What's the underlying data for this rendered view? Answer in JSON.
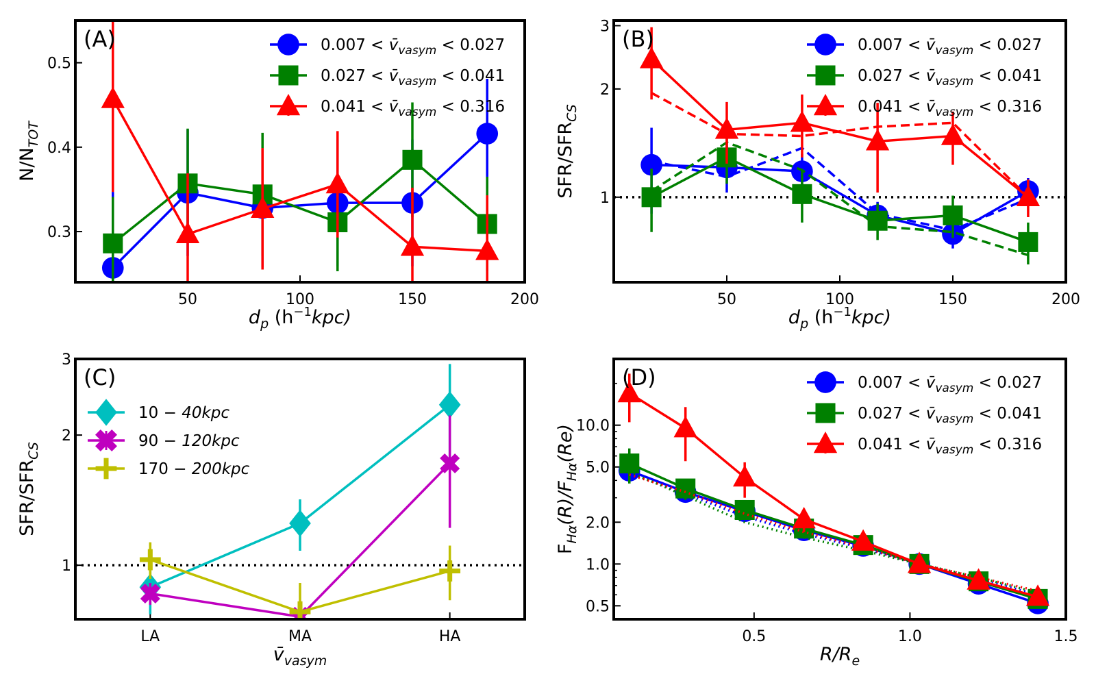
{
  "colors": {
    "blue": "#0000ff",
    "green": "#008000",
    "red": "#ff0000",
    "cyan": "#00bfbf",
    "magenta": "#bf00bf",
    "olive": "#bfbf00",
    "black": "#000000"
  },
  "legend_velocity": [
    "0.007 < v̄ vasym < 0.027",
    "0.027 < v̄ vasym < 0.041",
    "0.041 < v̄ vasym < 0.316"
  ],
  "chart_data": [
    {
      "id": "A",
      "type": "line",
      "panel_label": "(A)",
      "xlabel": "d p (h −1 kpc)",
      "xlabel_parts": {
        "main": "d",
        "sub": "p",
        "rest": " (h",
        "sup": "−1",
        "end": "kpc)"
      },
      "ylabel": "N/N TOT",
      "ylabel_parts": {
        "main": "N/N",
        "sub": "TOT"
      },
      "xlim": [
        0,
        200
      ],
      "ylim": [
        0.24,
        0.55
      ],
      "yscale": "linear",
      "xticks": [
        50,
        100,
        150,
        200
      ],
      "xticklabels": [
        "50",
        "100",
        "150",
        "200"
      ],
      "yticks": [
        0.3,
        0.4,
        0.5
      ],
      "yticklabels": [
        "0.3",
        "0.4",
        "0.5"
      ],
      "legend": "top-right",
      "x": [
        16.7,
        50,
        83.3,
        116.7,
        150,
        183.3
      ],
      "series": [
        {
          "name": "0.007 < v̄ vasym < 0.027",
          "color": "blue",
          "marker": "circle",
          "values": [
            0.257,
            0.346,
            0.328,
            0.334,
            0.334,
            0.416
          ],
          "err": [
            0.09,
            0.075,
            0.07,
            0.075,
            0.075,
            0.065
          ]
        },
        {
          "name": "0.027 < v̄ vasym < 0.041",
          "color": "green",
          "marker": "square",
          "values": [
            0.286,
            0.357,
            0.344,
            0.311,
            0.385,
            0.309
          ],
          "err": [
            0.055,
            0.065,
            0.073,
            0.058,
            0.068,
            0.056
          ]
        },
        {
          "name": "0.041 < v̄ vasym < 0.316",
          "color": "red",
          "marker": "triangle",
          "values": [
            0.457,
            0.297,
            0.327,
            0.356,
            0.282,
            0.277
          ],
          "err": [
            0.11,
            0.072,
            0.072,
            0.063,
            0.07,
            0.066
          ]
        }
      ]
    },
    {
      "id": "B",
      "type": "line",
      "panel_label": "(B)",
      "xlabel": "d p (h −1 kpc)",
      "xlabel_parts": {
        "main": "d",
        "sub": "p",
        "rest": " (h",
        "sup": "−1",
        "end": "kpc)"
      },
      "ylabel": "SFR/SFR CS",
      "ylabel_parts": {
        "main": "SFR/SFR",
        "sub": "CS"
      },
      "xlim": [
        0,
        200
      ],
      "ylim": [
        0.58,
        3.1
      ],
      "yscale": "log",
      "xticks": [
        50,
        100,
        150,
        200
      ],
      "xticklabels": [
        "50",
        "100",
        "150",
        "200"
      ],
      "yticks": [
        1,
        2,
        3
      ],
      "yticklabels": [
        "1",
        "2",
        "3"
      ],
      "hline": 1,
      "legend": "top-right",
      "x": [
        16.7,
        50,
        83.3,
        116.7,
        150,
        183.3
      ],
      "series": [
        {
          "name": "0.007 < v̄ vasym < 0.027",
          "color": "blue",
          "marker": "circle",
          "values": [
            1.23,
            1.21,
            1.18,
            0.89,
            0.79,
            1.04
          ],
          "err": [
            0.33,
            0.18,
            0.14,
            0.08,
            0.07,
            0.09
          ],
          "dashed": [
            1.26,
            1.14,
            1.37,
            0.9,
            0.81,
            0.99
          ]
        },
        {
          "name": "0.027 < v̄ vasym < 0.041",
          "color": "green",
          "marker": "square",
          "values": [
            1.0,
            1.29,
            1.02,
            0.86,
            0.89,
            0.75
          ],
          "err": [
            0.2,
            0.2,
            0.17,
            0.1,
            0.12,
            0.1
          ],
          "dashed": [
            1.04,
            1.42,
            1.19,
            0.83,
            0.8,
            0.69
          ]
        },
        {
          "name": "0.041 < v̄ vasym < 0.316",
          "color": "red",
          "marker": "triangle",
          "values": [
            2.42,
            1.54,
            1.61,
            1.43,
            1.48,
            1.0
          ],
          "err": [
            0.55,
            0.3,
            0.32,
            0.4,
            0.25,
            0.12
          ],
          "dashed": [
            1.95,
            1.5,
            1.48,
            1.57,
            1.61,
            1.0
          ]
        }
      ]
    },
    {
      "id": "C",
      "type": "line",
      "panel_label": "(C)",
      "xlabel": "v̄ vasym",
      "xlabel_parts": {
        "main": "v̄",
        "sub": "vasym"
      },
      "ylabel": "SFR/SFR CS",
      "ylabel_parts": {
        "main": "SFR/SFR",
        "sub": "CS"
      },
      "categories": [
        "LA",
        "MA",
        "HA"
      ],
      "xlim": [
        -0.5,
        2.5
      ],
      "ylim": [
        0.75,
        3.0
      ],
      "yscale": "log",
      "yticks": [
        1,
        2,
        3
      ],
      "yticklabels": [
        "1",
        "2",
        "3"
      ],
      "hline": 1,
      "legend": "top-left",
      "series": [
        {
          "name": "10 − 40kpc",
          "color": "cyan",
          "marker": "diamond",
          "values": [
            0.89,
            1.25,
            2.35
          ],
          "err": [
            0.12,
            0.17,
            0.57
          ]
        },
        {
          "name": "90 − 120kpc",
          "color": "magenta",
          "marker": "x",
          "values": [
            0.86,
            0.76,
            1.72
          ],
          "err": [
            0.05,
            0.04,
            0.5
          ]
        },
        {
          "name": "170 − 200kpc",
          "color": "olive",
          "marker": "plus",
          "values": [
            1.03,
            0.78,
            0.97
          ],
          "err": [
            0.1,
            0.13,
            0.14
          ]
        }
      ]
    },
    {
      "id": "D",
      "type": "line",
      "panel_label": "(D)",
      "xlabel": "R/R e",
      "xlabel_parts": {
        "main": "R/R",
        "sub": "e"
      },
      "ylabel": "F Hα(R)/F Hα(Re)",
      "ylabel_parts": {
        "main": "F",
        "sub": "Hα",
        "rest": "(R)/F",
        "sub2": "Hα",
        "end": "(Re)"
      },
      "xlim": [
        0.05,
        1.5
      ],
      "ylim": [
        0.4,
        30
      ],
      "yscale": "log",
      "xticks": [
        0.5,
        1.0,
        1.5
      ],
      "xticklabels": [
        "0.5",
        "1.0",
        "1.5"
      ],
      "yticks": [
        0.5,
        1.0,
        2.0,
        5.0,
        10.0
      ],
      "yticklabels": [
        "0.5",
        "1.0",
        "2.0",
        "5.0",
        "10.0"
      ],
      "legend": "top-right",
      "x": [
        0.1,
        0.28,
        0.47,
        0.66,
        0.85,
        1.03,
        1.22,
        1.41
      ],
      "series": [
        {
          "name": "0.007 < v̄ vasym < 0.027",
          "color": "blue",
          "marker": "circle",
          "values": [
            4.7,
            3.3,
            2.4,
            1.75,
            1.35,
            1.0,
            0.72,
            0.52
          ],
          "err": [
            0.7,
            0.4,
            0.25,
            0.15,
            0.1,
            0.05,
            0.05,
            0.05
          ],
          "dotted": [
            4.5,
            3.2,
            2.2,
            1.65,
            1.3,
            1.0,
            0.78,
            0.6
          ]
        },
        {
          "name": "0.027 < v̄ vasym < 0.041",
          "color": "green",
          "marker": "square",
          "values": [
            5.3,
            3.5,
            2.45,
            1.8,
            1.37,
            1.0,
            0.75,
            0.56
          ],
          "err": [
            1.5,
            0.6,
            0.3,
            0.2,
            0.1,
            0.05,
            0.05,
            0.05
          ],
          "dotted": [
            4.6,
            3.1,
            2.0,
            1.55,
            1.25,
            1.0,
            0.8,
            0.62
          ]
        },
        {
          "name": "0.041 < v̄ vasym < 0.316",
          "color": "red",
          "marker": "triangle",
          "values": [
            17.0,
            9.5,
            4.2,
            2.1,
            1.45,
            1.0,
            0.76,
            0.58
          ],
          "err": [
            6.5,
            4.0,
            1.2,
            0.4,
            0.1,
            0.05,
            0.05,
            0.05
          ],
          "dotted": [
            4.4,
            3.3,
            2.3,
            1.7,
            1.32,
            1.0,
            0.8,
            0.64
          ]
        }
      ]
    }
  ]
}
